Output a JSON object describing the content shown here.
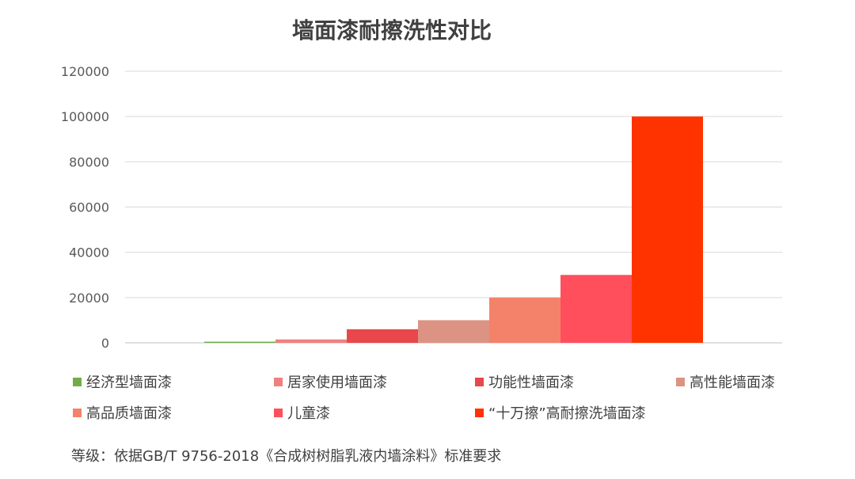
{
  "chart_data": {
    "type": "bar",
    "title": "墙面漆耐擦洗性对比",
    "xlabel": "",
    "ylabel": "",
    "ylim": [
      0,
      120000
    ],
    "yticks": [
      0,
      20000,
      40000,
      60000,
      80000,
      100000,
      120000
    ],
    "grid": true,
    "legend_position": "bottom",
    "series": [
      {
        "name": "经济型墙面漆",
        "value": 500,
        "color": "#70AD47"
      },
      {
        "name": "居家使用墙面漆",
        "value": 1500,
        "color": "#F08080"
      },
      {
        "name": "功能性墙面漆",
        "value": 6000,
        "color": "#E8474C"
      },
      {
        "name": "高性能墙面漆",
        "value": 10000,
        "color": "#DC9383"
      },
      {
        "name": "高品质墙面漆",
        "value": 20000,
        "color": "#F4826A"
      },
      {
        "name": "儿童漆",
        "value": 30000,
        "color": "#FF4F5C"
      },
      {
        "name": "“十万擦”高耐擦洗墙面漆",
        "value": 100000,
        "color": "#FF3300"
      }
    ]
  },
  "footnote": "等级：依据GB/T 9756-2018《合成树树脂乳液内墙涂料》标准要求"
}
